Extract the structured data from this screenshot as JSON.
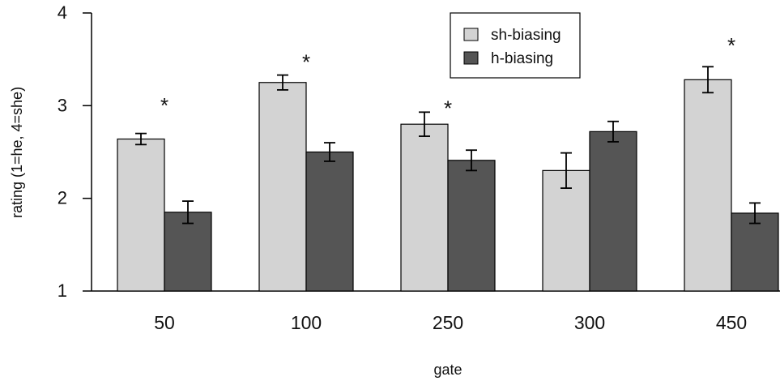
{
  "chart_data": {
    "type": "bar",
    "xlabel": "gate",
    "ylabel": "rating (1=he, 4=she)",
    "ylim": [
      1,
      4
    ],
    "yticks": [
      1,
      2,
      3,
      4
    ],
    "categories": [
      "50",
      "100",
      "250",
      "300",
      "450"
    ],
    "series": [
      {
        "name": "sh-biasing",
        "color": "#d3d3d3",
        "values": [
          2.64,
          3.25,
          2.8,
          2.3,
          3.28
        ],
        "error": [
          0.06,
          0.08,
          0.13,
          0.19,
          0.14
        ]
      },
      {
        "name": "h-biasing",
        "color": "#555555",
        "values": [
          1.85,
          2.5,
          2.41,
          2.72,
          1.84
        ],
        "error": [
          0.12,
          0.1,
          0.11,
          0.11,
          0.11
        ]
      }
    ],
    "annotations": [
      {
        "category": "50",
        "text": "*",
        "y": 3.08
      },
      {
        "category": "100",
        "text": "*",
        "y": 3.55
      },
      {
        "category": "250",
        "text": "*",
        "y": 3.05
      },
      {
        "category": "450",
        "text": "*",
        "y": 3.73
      }
    ],
    "legend_placement": "top-right",
    "grid": false
  }
}
